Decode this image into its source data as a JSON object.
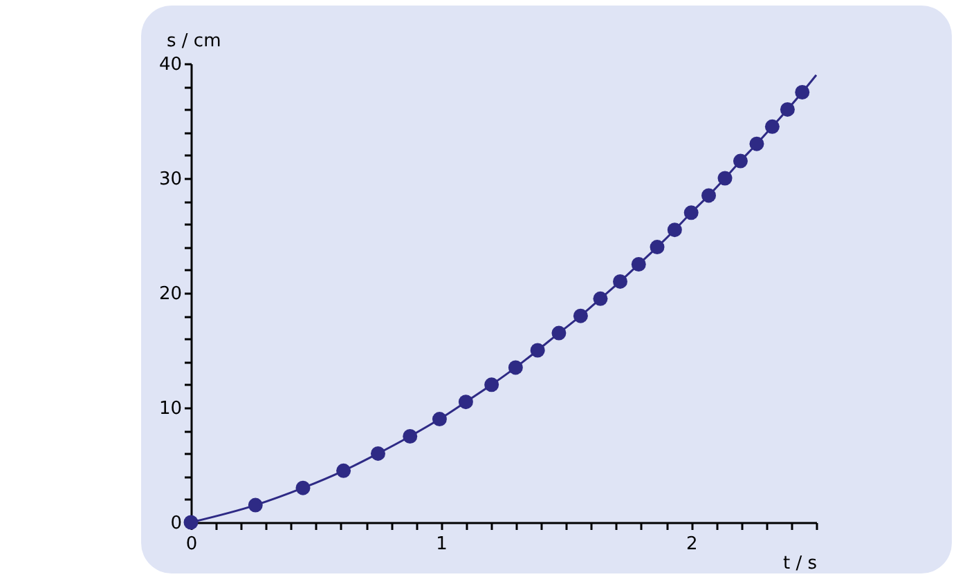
{
  "chart_data": {
    "type": "scatter",
    "xlabel": "t / s",
    "ylabel": "s / cm",
    "xlim": [
      0,
      2.5
    ],
    "ylim": [
      0,
      40
    ],
    "xticks": [
      0,
      {
        "value": 0.1,
        "label": null
      },
      {
        "value": 0.2,
        "label": null
      },
      {
        "value": 0.3,
        "label": null
      },
      {
        "value": 0.4,
        "label": null
      },
      {
        "value": 0.5,
        "label": null
      },
      {
        "value": 0.6,
        "label": null
      },
      {
        "value": 0.7,
        "label": null
      },
      {
        "value": 0.8,
        "label": null
      },
      {
        "value": 0.9,
        "label": null
      },
      1,
      {
        "value": 1.1,
        "label": null
      },
      {
        "value": 1.2,
        "label": null
      },
      {
        "value": 1.3,
        "label": null
      },
      {
        "value": 1.4,
        "label": null
      },
      {
        "value": 1.5,
        "label": null
      },
      {
        "value": 1.6,
        "label": null
      },
      {
        "value": 1.7,
        "label": null
      },
      {
        "value": 1.8,
        "label": null
      },
      {
        "value": 1.9,
        "label": null
      },
      2,
      {
        "value": 2.1,
        "label": null
      },
      {
        "value": 2.2,
        "label": null
      },
      {
        "value": 2.3,
        "label": null
      },
      {
        "value": 2.4,
        "label": null
      },
      {
        "value": 2.5,
        "label": null
      }
    ],
    "yticks": [
      0,
      {
        "value": 2,
        "label": null
      },
      {
        "value": 4,
        "label": null
      },
      {
        "value": 6,
        "label": null
      },
      {
        "value": 8,
        "label": null
      },
      10,
      {
        "value": 12,
        "label": null
      },
      {
        "value": 14,
        "label": null
      },
      {
        "value": 16,
        "label": null
      },
      {
        "value": 18,
        "label": null
      },
      20,
      {
        "value": 22,
        "label": null
      },
      {
        "value": 24,
        "label": null
      },
      {
        "value": 26,
        "label": null
      },
      {
        "value": 28,
        "label": null
      },
      30,
      {
        "value": 32,
        "label": null
      },
      {
        "value": 34,
        "label": null
      },
      {
        "value": 36,
        "label": null
      },
      {
        "value": 38,
        "label": null
      },
      40
    ],
    "grid": false,
    "series": [
      {
        "type": "line",
        "color": "#2e2a85",
        "marker": "none",
        "x": [
          0,
          0.258,
          0.448,
          0.61,
          0.748,
          0.876,
          0.994,
          1.099,
          1.202,
          1.298,
          1.386,
          1.471,
          1.558,
          1.637,
          1.716,
          1.79,
          1.864,
          1.934,
          2.0,
          2.07,
          2.135,
          2.197,
          2.262,
          2.324,
          2.385,
          2.444,
          2.5
        ],
        "values": [
          0,
          1.5,
          3,
          4.5,
          6,
          7.5,
          9,
          10.5,
          12,
          13.5,
          15,
          16.5,
          18,
          19.5,
          21,
          22.5,
          24,
          25.5,
          27,
          28.5,
          30,
          31.5,
          33,
          34.5,
          36,
          37.5,
          39
        ]
      },
      {
        "color": "#2e2a85",
        "marker": "circle",
        "x": [
          0,
          0.258,
          0.448,
          0.61,
          0.748,
          0.876,
          0.994,
          1.099,
          1.202,
          1.298,
          1.386,
          1.471,
          1.558,
          1.637,
          1.716,
          1.79,
          1.864,
          1.934,
          2.0,
          2.07,
          2.135,
          2.197,
          2.262,
          2.324,
          2.385,
          2.444
        ],
        "values": [
          0,
          1.5,
          3,
          4.5,
          6,
          7.5,
          9,
          10.5,
          12,
          13.5,
          15,
          16.5,
          18,
          19.5,
          21,
          22.5,
          24,
          25.5,
          27,
          28.5,
          30,
          31.5,
          33,
          34.5,
          36,
          37.5
        ]
      }
    ]
  }
}
